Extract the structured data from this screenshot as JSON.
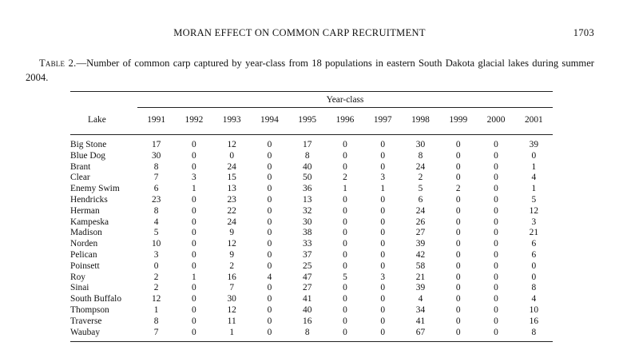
{
  "running_head": {
    "title": "MORAN EFFECT ON COMMON CARP RECRUITMENT",
    "page_number": "1703"
  },
  "caption": {
    "label": "Table 2.",
    "text": "—Number of common carp captured by year-class from 18 populations in eastern South Dakota glacial lakes during summer 2004."
  },
  "table": {
    "group_header": "Year-class",
    "lake_header": "Lake",
    "years": [
      "1991",
      "1992",
      "1993",
      "1994",
      "1995",
      "1996",
      "1997",
      "1998",
      "1999",
      "2000",
      "2001"
    ],
    "rows": [
      {
        "lake": "Big Stone",
        "values": [
          "17",
          "0",
          "12",
          "0",
          "17",
          "0",
          "0",
          "30",
          "0",
          "0",
          "39"
        ]
      },
      {
        "lake": "Blue Dog",
        "values": [
          "30",
          "0",
          "0",
          "0",
          "8",
          "0",
          "0",
          "8",
          "0",
          "0",
          "0"
        ]
      },
      {
        "lake": "Brant",
        "values": [
          "8",
          "0",
          "24",
          "0",
          "40",
          "0",
          "0",
          "24",
          "0",
          "0",
          "1"
        ]
      },
      {
        "lake": "Clear",
        "values": [
          "7",
          "3",
          "15",
          "0",
          "50",
          "2",
          "3",
          "2",
          "0",
          "0",
          "4"
        ]
      },
      {
        "lake": "Enemy Swim",
        "values": [
          "6",
          "1",
          "13",
          "0",
          "36",
          "1",
          "1",
          "5",
          "2",
          "0",
          "1"
        ]
      },
      {
        "lake": "Hendricks",
        "values": [
          "23",
          "0",
          "23",
          "0",
          "13",
          "0",
          "0",
          "6",
          "0",
          "0",
          "5"
        ]
      },
      {
        "lake": "Herman",
        "values": [
          "8",
          "0",
          "22",
          "0",
          "32",
          "0",
          "0",
          "24",
          "0",
          "0",
          "12"
        ]
      },
      {
        "lake": "Kampeska",
        "values": [
          "4",
          "0",
          "24",
          "0",
          "30",
          "0",
          "0",
          "26",
          "0",
          "0",
          "3"
        ]
      },
      {
        "lake": "Madison",
        "values": [
          "5",
          "0",
          "9",
          "0",
          "38",
          "0",
          "0",
          "27",
          "0",
          "0",
          "21"
        ]
      },
      {
        "lake": "Norden",
        "values": [
          "10",
          "0",
          "12",
          "0",
          "33",
          "0",
          "0",
          "39",
          "0",
          "0",
          "6"
        ]
      },
      {
        "lake": "Pelican",
        "values": [
          "3",
          "0",
          "9",
          "0",
          "37",
          "0",
          "0",
          "42",
          "0",
          "0",
          "6"
        ]
      },
      {
        "lake": "Poinsett",
        "values": [
          "0",
          "0",
          "2",
          "0",
          "25",
          "0",
          "0",
          "58",
          "0",
          "0",
          "0"
        ]
      },
      {
        "lake": "Roy",
        "values": [
          "2",
          "1",
          "16",
          "4",
          "47",
          "5",
          "3",
          "21",
          "0",
          "0",
          "0"
        ]
      },
      {
        "lake": "Sinai",
        "values": [
          "2",
          "0",
          "7",
          "0",
          "27",
          "0",
          "0",
          "39",
          "0",
          "0",
          "8"
        ]
      },
      {
        "lake": "South Buffalo",
        "values": [
          "12",
          "0",
          "30",
          "0",
          "41",
          "0",
          "0",
          "4",
          "0",
          "0",
          "4"
        ]
      },
      {
        "lake": "Thompson",
        "values": [
          "1",
          "0",
          "12",
          "0",
          "40",
          "0",
          "0",
          "34",
          "0",
          "0",
          "10"
        ]
      },
      {
        "lake": "Traverse",
        "values": [
          "8",
          "0",
          "11",
          "0",
          "16",
          "0",
          "0",
          "41",
          "0",
          "0",
          "16"
        ]
      },
      {
        "lake": "Waubay",
        "values": [
          "7",
          "0",
          "1",
          "0",
          "8",
          "0",
          "0",
          "67",
          "0",
          "0",
          "8"
        ]
      }
    ]
  }
}
